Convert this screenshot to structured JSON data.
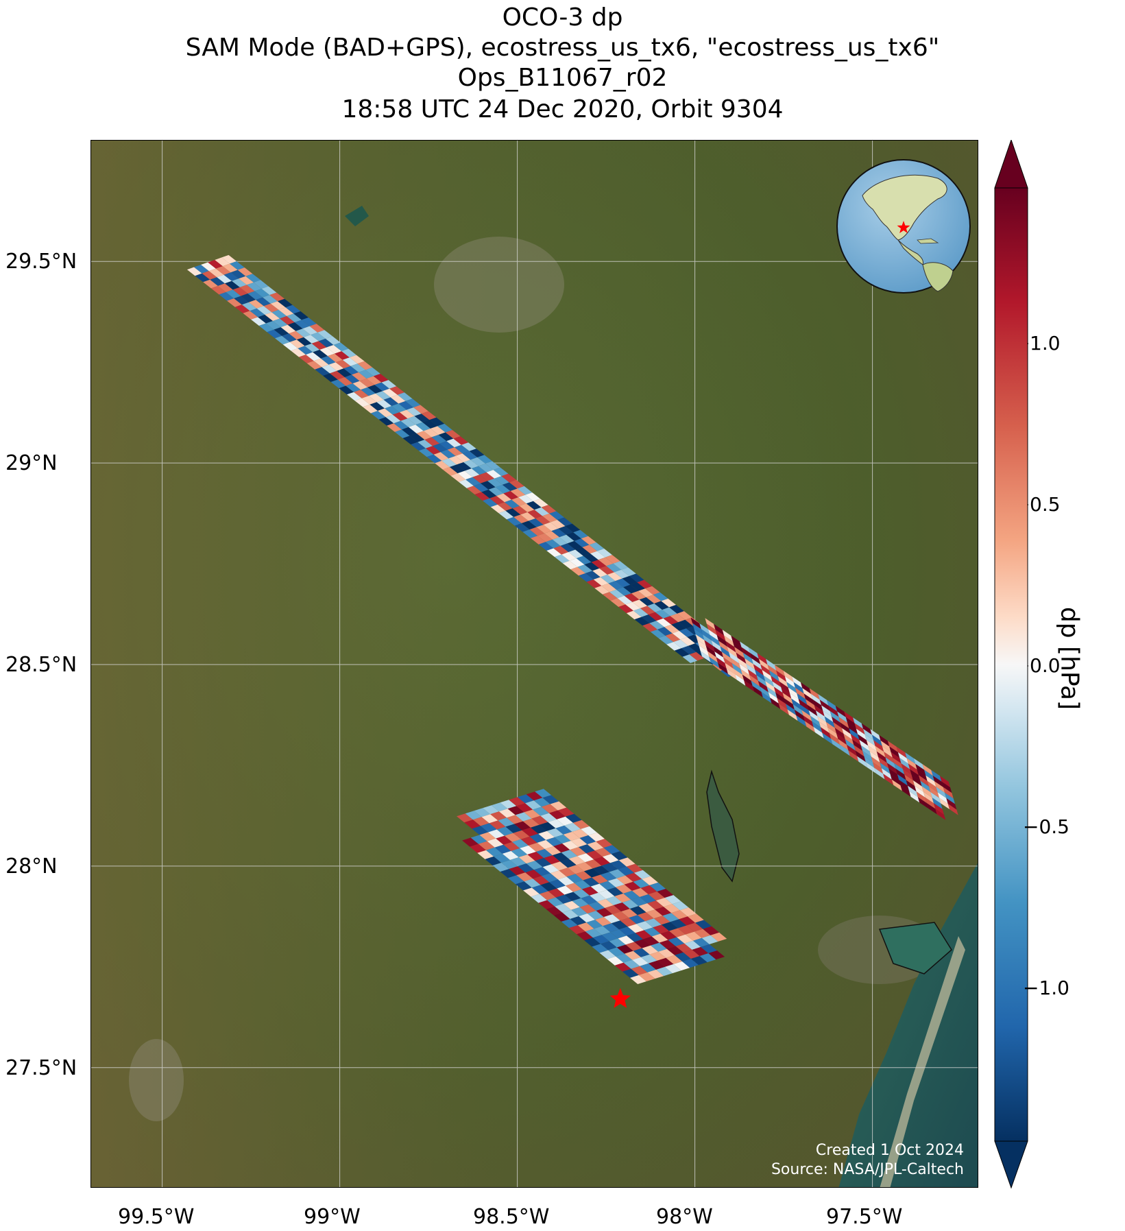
{
  "title": {
    "line1": "OCO-3 dp",
    "line2": "SAM Mode (BAD+GPS), ecostress_us_tx6, \"ecostress_us_tx6\"",
    "line3": "Ops_B11067_r02",
    "line4": "18:58 UTC 24 Dec 2020, Orbit 9304"
  },
  "map": {
    "lon_range": [
      -99.7,
      -97.2
    ],
    "lat_range": [
      27.2,
      29.8
    ],
    "lat_ticks": [
      "29.5°N",
      "29°N",
      "28.5°N",
      "28°N",
      "27.5°N"
    ],
    "lon_ticks": [
      "99.5°W",
      "99°W",
      "98.5°W",
      "98°W",
      "97.5°W"
    ],
    "background": "satellite imagery",
    "target_marker": {
      "lon": -98.21,
      "lat": 27.67,
      "color": "#ff0000",
      "icon": "star-icon"
    },
    "credit_line1": "Created 1 Oct 2024",
    "credit_line2": "Source: NASA/JPL-Caltech"
  },
  "inset_globe": {
    "icon": "globe-icon",
    "marker": "star-icon",
    "marker_color": "#ff0000"
  },
  "colorbar": {
    "label": "dp [hPa]",
    "range": [
      -1.4,
      1.4
    ],
    "ticks": [
      "1.0",
      "0.5",
      "0.0",
      "−0.5",
      "−1.0"
    ],
    "colormap": "RdBu_r",
    "extend": "both"
  }
}
